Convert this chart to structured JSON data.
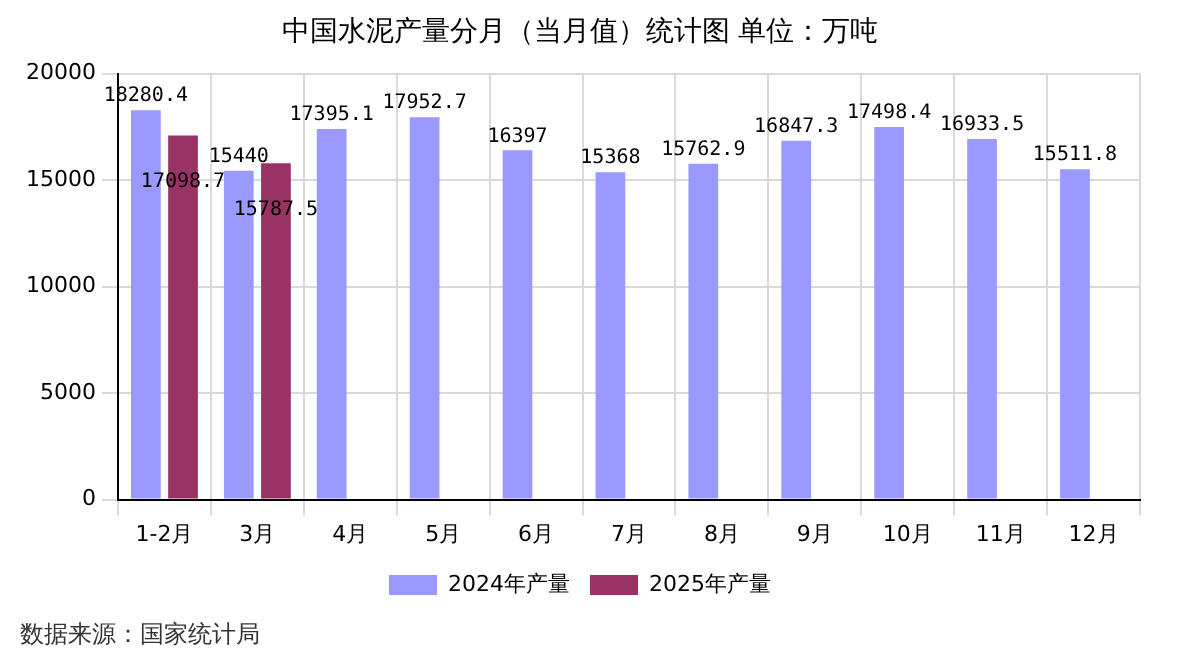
{
  "chart_data": {
    "type": "bar",
    "title": "中国水泥产量分月（当月值）统计图 单位：万吨",
    "categories": [
      "1-2月",
      "3月",
      "4月",
      "5月",
      "6月",
      "7月",
      "8月",
      "9月",
      "10月",
      "11月",
      "12月"
    ],
    "series": [
      {
        "name": "2024年产量",
        "color": "#9999ff",
        "values": [
          18280.4,
          15440,
          17395.1,
          17952.7,
          16397,
          15368,
          15762.9,
          16847.3,
          17498.4,
          16933.5,
          15511.8
        ]
      },
      {
        "name": "2025年产量",
        "color": "#993366",
        "values": [
          17098.7,
          15787.5,
          null,
          null,
          null,
          null,
          null,
          null,
          null,
          null,
          null
        ]
      }
    ],
    "ylim": [
      0,
      20000
    ],
    "yticks": [
      0,
      5000,
      10000,
      15000,
      20000
    ],
    "grid": true,
    "legend": "bottom",
    "data_labels": true,
    "annotations": [
      "数据来源：国家统计局"
    ]
  }
}
